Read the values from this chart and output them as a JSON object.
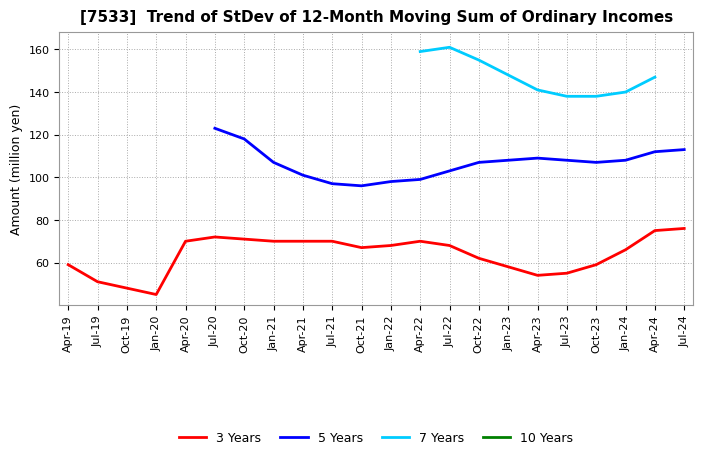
{
  "title": "[7533]  Trend of StDev of 12-Month Moving Sum of Ordinary Incomes",
  "ylabel": "Amount (million yen)",
  "ylim": [
    40,
    168
  ],
  "yticks": [
    60,
    80,
    100,
    120,
    140,
    160
  ],
  "background_color": "#ffffff",
  "grid_color": "#aaaaaa",
  "legend_entries": [
    "3 Years",
    "5 Years",
    "7 Years",
    "10 Years"
  ],
  "legend_colors": [
    "#ff0000",
    "#0000ff",
    "#00ccff",
    "#008000"
  ],
  "x_labels": [
    "Apr-19",
    "Jul-19",
    "Oct-19",
    "Jan-20",
    "Apr-20",
    "Jul-20",
    "Oct-20",
    "Jan-21",
    "Apr-21",
    "Jul-21",
    "Oct-21",
    "Jan-22",
    "Apr-22",
    "Jul-22",
    "Oct-22",
    "Jan-23",
    "Apr-23",
    "Jul-23",
    "Oct-23",
    "Jan-24",
    "Apr-24",
    "Jul-24"
  ],
  "series_3y": [
    59,
    51,
    48,
    45,
    70,
    72,
    71,
    70,
    70,
    70,
    67,
    68,
    70,
    68,
    62,
    58,
    54,
    55,
    59,
    66,
    75,
    76
  ],
  "series_5y": [
    null,
    null,
    null,
    null,
    null,
    123,
    118,
    107,
    101,
    97,
    96,
    98,
    99,
    103,
    107,
    108,
    109,
    108,
    107,
    108,
    112,
    113
  ],
  "series_7y": [
    null,
    null,
    null,
    null,
    null,
    null,
    null,
    null,
    null,
    null,
    null,
    null,
    159,
    161,
    155,
    148,
    141,
    138,
    138,
    140,
    147,
    null
  ],
  "series_10y": [
    null,
    null,
    null,
    null,
    null,
    null,
    null,
    null,
    null,
    null,
    null,
    null,
    null,
    null,
    null,
    null,
    null,
    null,
    null,
    null,
    null,
    null
  ],
  "title_fontsize": 11,
  "tick_fontsize": 8,
  "ylabel_fontsize": 9,
  "lw": 2.0
}
